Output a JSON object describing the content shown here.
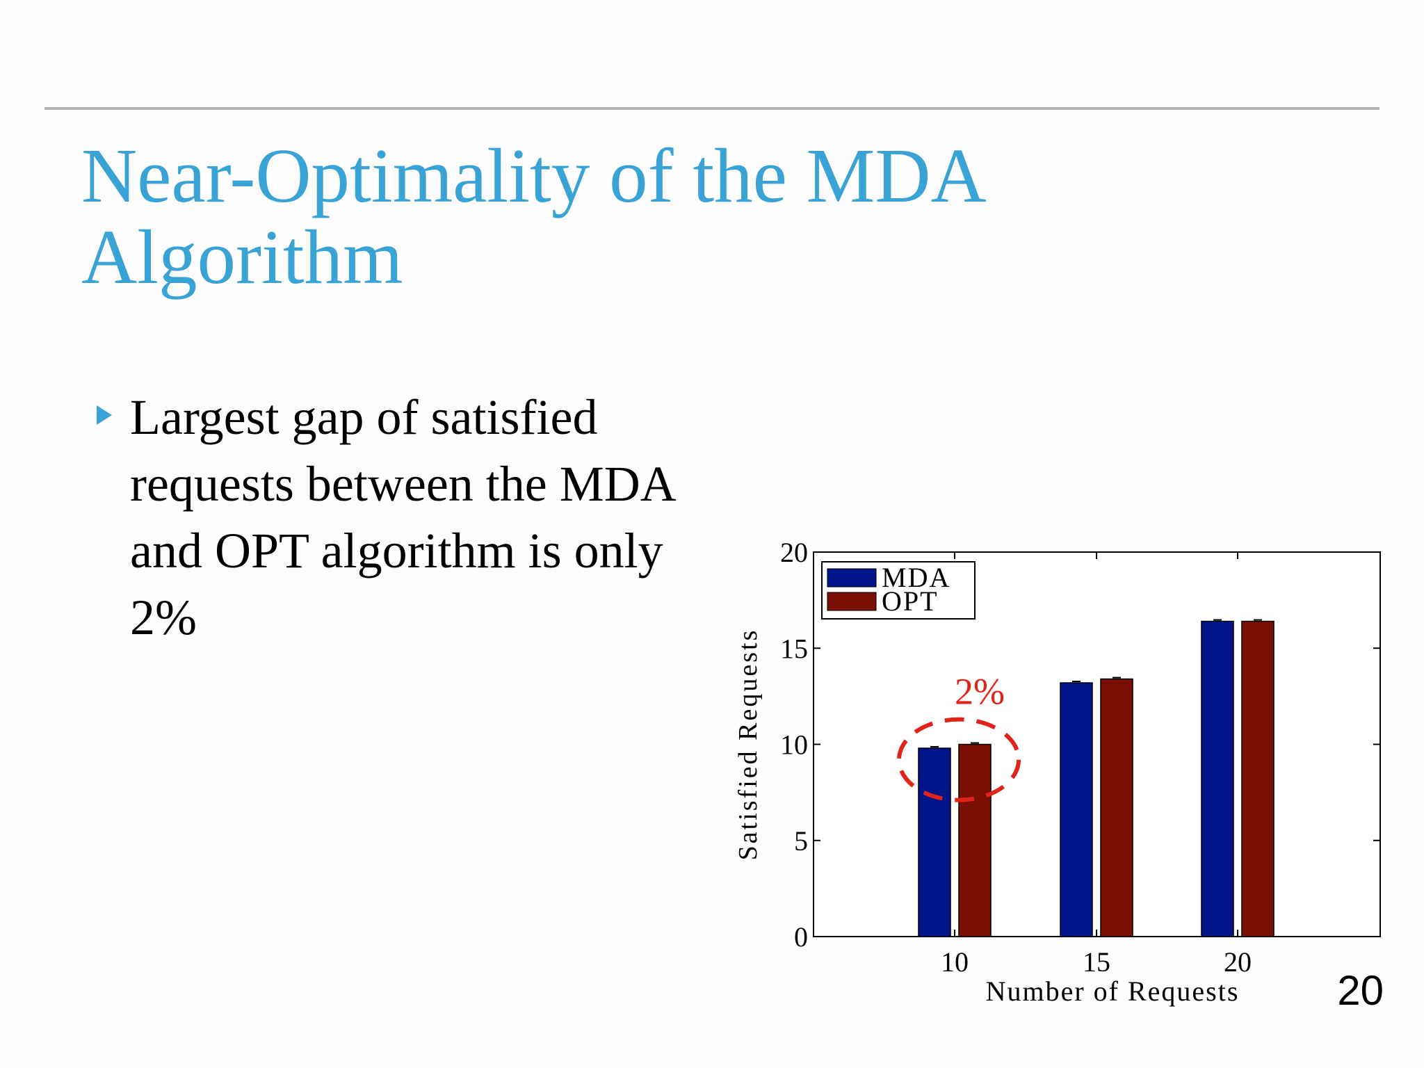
{
  "slide": {
    "title_lines": [
      "Near-Optimality of the MDA",
      "Algorithm"
    ],
    "bullet_lines": [
      "Largest gap of satisfied",
      "requests between the MDA",
      "and OPT algorithm is only",
      "2%"
    ],
    "slide_number": "20",
    "title_color": "#3aa3d6"
  },
  "chart_data": {
    "type": "bar",
    "categories": [
      "10",
      "15",
      "20"
    ],
    "series": [
      {
        "name": "MDA",
        "values": [
          9.8,
          13.2,
          16.4
        ],
        "color": "#00168a"
      },
      {
        "name": "OPT",
        "values": [
          10.0,
          13.4,
          16.4
        ],
        "color": "#7a0f06"
      }
    ],
    "xlabel": "Number of Requests",
    "ylabel": "Satisfied Requests",
    "ylim": [
      0,
      20
    ],
    "yticks": [
      "0",
      "5",
      "10",
      "15",
      "20"
    ],
    "legend": "top-left",
    "grid": false,
    "annotation": {
      "text": "2%",
      "color": "#e2231a",
      "category": "10"
    }
  }
}
